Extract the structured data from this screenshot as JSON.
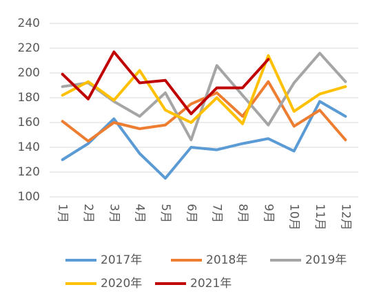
{
  "chart_data": {
    "type": "line",
    "categories": [
      "1月",
      "2月",
      "3月",
      "4月",
      "5月",
      "6月",
      "7月",
      "8月",
      "9月",
      "10月",
      "11月",
      "12月"
    ],
    "series": [
      {
        "name": "2017年",
        "color": "#5b9bd5",
        "values": [
          130,
          143,
          163,
          135,
          115,
          140,
          138,
          143,
          147,
          137,
          177,
          165
        ]
      },
      {
        "name": "2018年",
        "color": "#ed7d31",
        "values": [
          161,
          145,
          160,
          155,
          158,
          175,
          184,
          165,
          193,
          157,
          170,
          146
        ]
      },
      {
        "name": "2019年",
        "color": "#a5a5a5",
        "values": [
          189,
          192,
          177,
          165,
          184,
          146,
          206,
          182,
          158,
          192,
          216,
          193
        ]
      },
      {
        "name": "2020年",
        "color": "#ffc000",
        "values": [
          182,
          193,
          178,
          202,
          170,
          160,
          180,
          159,
          214,
          169,
          183,
          189
        ]
      },
      {
        "name": "2021年",
        "color": "#c00000",
        "values": [
          199,
          179,
          217,
          192,
          194,
          167,
          188,
          188,
          211,
          null,
          null,
          null
        ]
      }
    ],
    "ylim": [
      100,
      240
    ],
    "yticks": [
      100,
      120,
      140,
      160,
      180,
      200,
      220,
      240
    ],
    "grid": true,
    "legend": "bottom"
  }
}
